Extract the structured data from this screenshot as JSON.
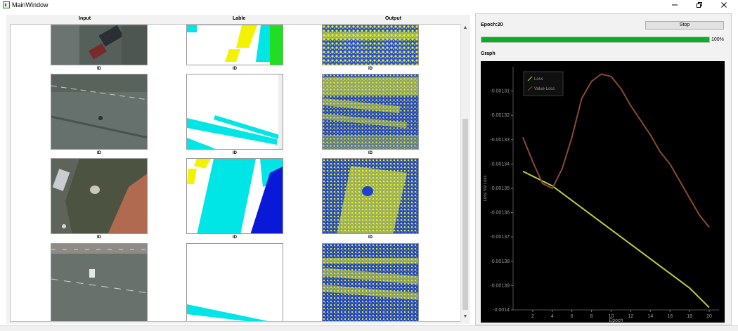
{
  "window": {
    "title": "MainWindow",
    "controls": [
      "minimize-icon",
      "restore-icon",
      "close-icon"
    ]
  },
  "table": {
    "headers": [
      "Input",
      "Lable",
      "Output"
    ],
    "rows": [
      {
        "input_id": "ID",
        "label_id": "ID",
        "output_id": "ID"
      },
      {
        "input_id": "ID",
        "label_id": "ID",
        "output_id": "ID"
      },
      {
        "input_id": "ID",
        "label_id": "ID",
        "output_id": "ID"
      },
      {
        "input_id": "",
        "label_id": "",
        "output_id": ""
      }
    ]
  },
  "training": {
    "epoch_label": "Epoch:20",
    "stop_label": "Stop",
    "progress": 100,
    "progress_text": "100%",
    "graph_label": "Graph"
  },
  "colors": {
    "progress": "#06b025",
    "loss": "#b6cf3f",
    "value_loss": "#8b4a2b",
    "chart_bg": "#000000",
    "chart_text": "#9a9a9a"
  },
  "chart_data": {
    "type": "line",
    "title": "",
    "xlabel": "Epoch",
    "ylabel": "Loss Val Loss",
    "xlim": [
      0,
      21
    ],
    "ylim": [
      -0.0014,
      -0.0013
    ],
    "xticks": [
      2,
      4,
      6,
      8,
      10,
      12,
      14,
      16,
      18,
      20
    ],
    "xtick_labels": [
      "2",
      "4",
      "6",
      "8",
      "10",
      "12",
      "14",
      "16",
      "18",
      "20"
    ],
    "yticks": [
      -0.00131,
      -0.00132,
      -0.00133,
      -0.00134,
      -0.00135,
      -0.00136,
      -0.00137,
      -0.00138,
      -0.00139,
      -0.0014
    ],
    "ytick_labels": [
      "-0.00131",
      "-0.00132",
      "-0.00133",
      "-0.00134",
      "-0.00135",
      "-0.00136",
      "-0.00137",
      "-0.00138",
      "-0.00139",
      "-0.0014"
    ],
    "legend_position": "top-left",
    "grid": false,
    "x": [
      1,
      2,
      3,
      4,
      5,
      6,
      7,
      8,
      9,
      10,
      11,
      12,
      13,
      14,
      15,
      16,
      17,
      18,
      19,
      20
    ],
    "series": [
      {
        "name": "Loss",
        "color": "#b6cf3f",
        "values": [
          -0.001343,
          -0.001345,
          -0.001347,
          -0.001349,
          -0.001352,
          -0.001355,
          -0.001358,
          -0.001361,
          -0.001364,
          -0.001367,
          -0.00137,
          -0.001373,
          -0.001376,
          -0.001379,
          -0.001382,
          -0.001385,
          -0.001388,
          -0.001391,
          -0.001395,
          -0.001399
        ]
      },
      {
        "name": "Value Loss",
        "color": "#8b4a2b",
        "values": [
          -0.001329,
          -0.001339,
          -0.001348,
          -0.00135,
          -0.001342,
          -0.001329,
          -0.001313,
          -0.001306,
          -0.001303,
          -0.001304,
          -0.001309,
          -0.001316,
          -0.001322,
          -0.001328,
          -0.001335,
          -0.00134,
          -0.001347,
          -0.001354,
          -0.001361,
          -0.001366
        ]
      }
    ]
  }
}
